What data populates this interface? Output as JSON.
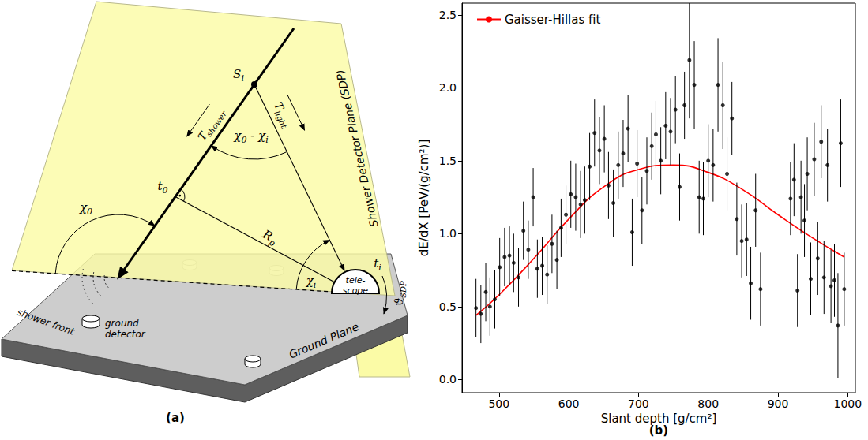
{
  "diagram": {
    "panel_label": "(a)",
    "shower_point": [
      {
        "text": "S"
      },
      {
        "text": "i",
        "sub": true
      }
    ],
    "shower_time": [
      {
        "text": "T"
      },
      {
        "text": "shower",
        "sub": true
      }
    ],
    "light_time": [
      {
        "text": "T"
      },
      {
        "text": "light",
        "sub": true
      }
    ],
    "angle_difference": [
      {
        "text": "χ"
      },
      {
        "text": "0",
        "sub": true
      },
      {
        "text": " - "
      },
      {
        "text": "χ"
      },
      {
        "text": "i",
        "sub": true
      }
    ],
    "closest_time": [
      {
        "text": "t"
      },
      {
        "text": "0",
        "sub": true
      }
    ],
    "impact_parameter": [
      {
        "text": "R"
      },
      {
        "text": "p",
        "sub": true
      }
    ],
    "axis_angle": [
      {
        "text": "χ"
      },
      {
        "text": "0",
        "sub": true
      }
    ],
    "elevation_angle": [
      {
        "text": "χ"
      },
      {
        "text": "i",
        "sub": true
      }
    ],
    "telescope_time": [
      {
        "text": "t"
      },
      {
        "text": "i",
        "sub": true
      }
    ],
    "telescope": "tele-scope",
    "plane": "Shower Detector Plane (SDP)",
    "plane_angle": [
      {
        "text": "ϑ"
      },
      {
        "text": "SDP",
        "sub": true
      }
    ],
    "shower_front": "shower front",
    "ground_detector": "ground detector",
    "ground_plane": "Ground Plane"
  },
  "chart_data": {
    "type": "scatter",
    "panel_label": "(b)",
    "xlabel": "Slant depth [g/cm²]",
    "ylabel": "dE/dX [PeV/(g/cm²)]",
    "xlim": [
      447,
      1011
    ],
    "ylim": [
      -0.09,
      2.58
    ],
    "xticks": [
      500,
      600,
      700,
      800,
      900,
      1000
    ],
    "yticks": [
      {
        "value": 0,
        "label": "0.0"
      },
      0.5,
      {
        "value": 1,
        "label": "1.0"
      },
      1.5,
      {
        "value": 2,
        "label": "2.0"
      },
      2.5
    ],
    "grid": false,
    "legend": "upper left",
    "series": [
      {
        "type": "scatter",
        "color": "#000000",
        "marker": "circle",
        "x": [
          467,
          474,
          481,
          487,
          494,
          501,
          508,
          515,
          521,
          528,
          535,
          542,
          549,
          555,
          562,
          569,
          576,
          583,
          589,
          596,
          603,
          610,
          617,
          623,
          630,
          637,
          644,
          651,
          657,
          664,
          671,
          678,
          685,
          691,
          698,
          705,
          712,
          719,
          725,
          732,
          739,
          746,
          753,
          759,
          766,
          773,
          780,
          787,
          793,
          800,
          807,
          814,
          821,
          827,
          834,
          841,
          848,
          855,
          861,
          868,
          875,
          918,
          923,
          928,
          933,
          938,
          942,
          947,
          952,
          957,
          962,
          966,
          971,
          976,
          981,
          986,
          990,
          995
        ],
        "values": [
          0.49,
          0.45,
          0.6,
          0.5,
          0.55,
          0.77,
          0.84,
          0.85,
          0.8,
          0.7,
          1.02,
          0.89,
          1.25,
          0.76,
          0.78,
          0.72,
          0.93,
          0.82,
          1.04,
          1.13,
          1.27,
          1.25,
          1.2,
          1.23,
          1.46,
          1.69,
          1.57,
          1.65,
          1.33,
          1.21,
          1.47,
          1.55,
          1.72,
          1.01,
          1.48,
          1.16,
          1.43,
          1.6,
          1.68,
          1.5,
          1.74,
          1.7,
          1.85,
          1.32,
          1.88,
          2.19,
          2.02,
          1.25,
          1.24,
          1.5,
          1.47,
          2.02,
          1.88,
          1.41,
          1.79,
          1.1,
          0.95,
          0.96,
          0.66,
          1.16,
          0.62,
          1.24,
          1.37,
          0.61,
          1.25,
          1.09,
          1.41,
          0.69,
          1.51,
          0.83,
          1.63,
          0.7,
          1.47,
          0.64,
          0.68,
          0.37,
          1.62,
          0.62
        ],
        "errors": [
          0.2,
          0.2,
          0.2,
          0.2,
          0.2,
          0.2,
          0.2,
          0.2,
          0.2,
          0.2,
          0.2,
          0.2,
          0.2,
          0.2,
          0.2,
          0.2,
          0.2,
          0.2,
          0.2,
          0.2,
          0.23,
          0.23,
          0.23,
          0.23,
          0.23,
          0.23,
          0.23,
          0.23,
          0.23,
          0.23,
          0.23,
          0.23,
          0.23,
          0.23,
          0.23,
          0.23,
          0.23,
          0.23,
          0.23,
          0.23,
          0.23,
          0.23,
          0.23,
          0.23,
          0.23,
          0.4,
          0.3,
          0.25,
          0.25,
          0.25,
          0.25,
          0.32,
          0.3,
          0.25,
          0.25,
          0.25,
          0.25,
          0.25,
          0.25,
          0.25,
          0.25,
          0.25,
          0.25,
          0.25,
          0.25,
          0.25,
          0.25,
          0.25,
          0.25,
          0.25,
          0.25,
          0.25,
          0.25,
          0.25,
          0.25,
          0.36,
          0.3,
          0.25
        ]
      },
      {
        "name": "Gaisser-Hillas fit",
        "type": "line",
        "color": "#ff0000",
        "x": [
          467,
          500,
          550,
          600,
          650,
          700,
          750,
          800,
          850,
          900,
          950,
          995
        ],
        "values": [
          0.44,
          0.58,
          0.83,
          1.1,
          1.32,
          1.44,
          1.47,
          1.42,
          1.3,
          1.13,
          0.97,
          0.84
        ]
      }
    ]
  }
}
